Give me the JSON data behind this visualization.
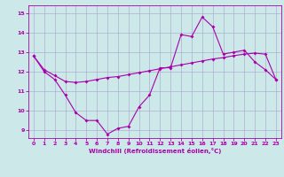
{
  "xlabel": "Windchill (Refroidissement éolien,°C)",
  "bg_color": "#cce8e8",
  "line_color": "#aa00aa",
  "grid_color": "#aaaacc",
  "xlim": [
    -0.5,
    23.5
  ],
  "ylim": [
    8.6,
    15.4
  ],
  "yticks": [
    9,
    10,
    11,
    12,
    13,
    14,
    15
  ],
  "xticks": [
    0,
    1,
    2,
    3,
    4,
    5,
    6,
    7,
    8,
    9,
    10,
    11,
    12,
    13,
    14,
    15,
    16,
    17,
    18,
    19,
    20,
    21,
    22,
    23
  ],
  "series1": [
    12.8,
    12.0,
    11.6,
    10.8,
    9.9,
    9.5,
    9.5,
    8.8,
    9.1,
    9.2,
    10.2,
    10.8,
    12.2,
    12.2,
    13.9,
    13.8,
    14.8,
    14.3,
    12.9,
    13.0,
    13.1,
    12.5,
    12.1,
    11.6
  ],
  "series2": [
    12.8,
    12.1,
    11.8,
    11.5,
    11.45,
    11.5,
    11.6,
    11.7,
    11.75,
    11.85,
    11.95,
    12.05,
    12.15,
    12.25,
    12.35,
    12.45,
    12.55,
    12.65,
    12.72,
    12.82,
    12.9,
    12.95,
    12.9,
    11.6
  ]
}
